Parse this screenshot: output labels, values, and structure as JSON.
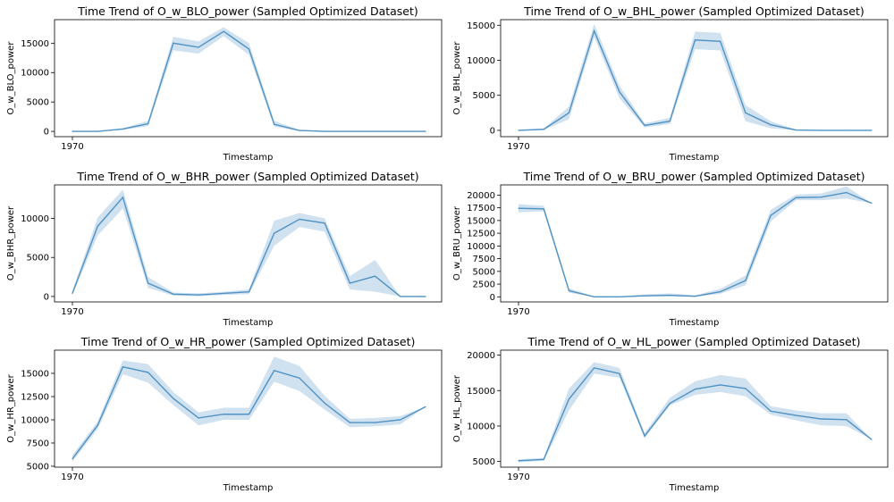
{
  "colors": {
    "line": "#4f92c4",
    "band": "#a9c8e2",
    "axis": "#000000",
    "background": "#ffffff"
  },
  "chart_data": [
    {
      "type": "line",
      "title": "Time Trend of O_w_BLO_power (Sampled Optimized Dataset)",
      "xlabel": "Timestamp",
      "ylabel": "O_w_BLO_power",
      "x_tick_labels": [
        "1970"
      ],
      "yticks": [
        0,
        5000,
        10000,
        15000
      ],
      "ylim": [
        -900,
        19000
      ],
      "x": [
        1,
        2,
        3,
        4,
        5,
        6,
        7,
        8,
        9,
        10,
        11,
        12,
        13,
        14,
        15
      ],
      "series": [
        {
          "values": [
            0,
            0,
            400,
            1300,
            15000,
            14300,
            17000,
            14000,
            1200,
            150,
            0,
            0,
            0,
            0,
            0
          ],
          "lower": [
            0,
            0,
            250,
            900,
            13800,
            13200,
            16200,
            13000,
            800,
            50,
            0,
            0,
            0,
            0,
            0
          ],
          "upper": [
            0,
            0,
            550,
            1800,
            16100,
            15300,
            17700,
            15000,
            1800,
            250,
            0,
            0,
            0,
            0,
            0
          ]
        }
      ]
    },
    {
      "type": "line",
      "title": "Time Trend of O_w_BHL_power (Sampled Optimized Dataset)",
      "xlabel": "Timestamp",
      "ylabel": "O_w_BHL_power",
      "x_tick_labels": [
        "1970"
      ],
      "yticks": [
        0,
        5000,
        10000,
        15000
      ],
      "ylim": [
        -900,
        15800
      ],
      "x": [
        1,
        2,
        3,
        4,
        5,
        6,
        7,
        8,
        9,
        10,
        11,
        12,
        13,
        14,
        15
      ],
      "series": [
        {
          "values": [
            0,
            150,
            2500,
            14200,
            5500,
            700,
            1300,
            12900,
            12700,
            2500,
            800,
            50,
            0,
            0,
            0
          ],
          "lower": [
            0,
            50,
            1600,
            13300,
            4600,
            400,
            900,
            11600,
            11400,
            1300,
            300,
            0,
            0,
            0,
            0
          ],
          "upper": [
            0,
            250,
            3400,
            15200,
            6400,
            1000,
            1800,
            14100,
            13900,
            3600,
            1300,
            100,
            0,
            0,
            0
          ]
        }
      ]
    },
    {
      "type": "line",
      "title": "Time Trend of O_w_BHR_power (Sampled Optimized Dataset)",
      "xlabel": "Timestamp",
      "ylabel": "O_w_BHR_power",
      "x_tick_labels": [
        "1970"
      ],
      "yticks": [
        0,
        5000,
        10000
      ],
      "ylim": [
        -700,
        14300
      ],
      "x": [
        1,
        2,
        3,
        4,
        5,
        6,
        7,
        8,
        9,
        10,
        11,
        12,
        13,
        14,
        15
      ],
      "series": [
        {
          "values": [
            400,
            9000,
            12700,
            1700,
            300,
            200,
            400,
            600,
            8100,
            9900,
            9400,
            1700,
            2600,
            0,
            0
          ],
          "lower": [
            200,
            7800,
            11300,
            1100,
            100,
            50,
            200,
            300,
            6500,
            8900,
            8300,
            900,
            600,
            0,
            0
          ],
          "upper": [
            700,
            10100,
            13700,
            2500,
            500,
            400,
            600,
            900,
            9700,
            10700,
            10000,
            2600,
            4700,
            0,
            0
          ]
        }
      ]
    },
    {
      "type": "line",
      "title": "Time Trend of O_w_BRU_power (Sampled Optimized Dataset)",
      "xlabel": "Timestamp",
      "ylabel": "O_w_BRU_power",
      "x_tick_labels": [
        "1970"
      ],
      "yticks": [
        0,
        2500,
        5000,
        7500,
        10000,
        12500,
        15000,
        17500,
        20000
      ],
      "ylim": [
        -1000,
        22000
      ],
      "x": [
        1,
        2,
        3,
        4,
        5,
        6,
        7,
        8,
        9,
        10,
        11,
        12,
        13,
        14,
        15
      ],
      "series": [
        {
          "values": [
            17400,
            17300,
            1200,
            0,
            0,
            200,
            300,
            100,
            1000,
            3200,
            16000,
            19500,
            19600,
            20500,
            18400
          ],
          "lower": [
            16600,
            16800,
            800,
            0,
            0,
            50,
            100,
            0,
            600,
            2300,
            14800,
            19000,
            19000,
            19300,
            18400
          ],
          "upper": [
            18200,
            17900,
            1700,
            50,
            100,
            500,
            700,
            300,
            1600,
            4200,
            17100,
            20100,
            20300,
            21700,
            18400
          ]
        }
      ]
    },
    {
      "type": "line",
      "title": "Time Trend of O_w_HR_power (Sampled Optimized Dataset)",
      "xlabel": "Timestamp",
      "ylabel": "O_w_HR_power",
      "x_tick_labels": [
        "1970"
      ],
      "yticks": [
        5000,
        7500,
        10000,
        12500,
        15000
      ],
      "ylim": [
        4900,
        17500
      ],
      "x": [
        1,
        2,
        3,
        4,
        5,
        6,
        7,
        8,
        9,
        10,
        11,
        12,
        13,
        14,
        15
      ],
      "series": [
        {
          "values": [
            5800,
            9400,
            15700,
            15100,
            12300,
            10200,
            10600,
            10600,
            15300,
            14500,
            11800,
            9700,
            9700,
            10000,
            11400
          ],
          "lower": [
            5500,
            9000,
            14900,
            14000,
            11600,
            9400,
            10000,
            10000,
            14100,
            13100,
            11100,
            9200,
            9300,
            9500,
            11400
          ],
          "upper": [
            6200,
            9800,
            16400,
            16000,
            13000,
            10800,
            11300,
            11300,
            16800,
            15800,
            12600,
            10100,
            10200,
            10400,
            11400
          ]
        }
      ]
    },
    {
      "type": "line",
      "title": "Time Trend of O_w_HL_power (Sampled Optimized Dataset)",
      "xlabel": "Timestamp",
      "ylabel": "O_w_HL_power",
      "x_tick_labels": [
        "1970"
      ],
      "yticks": [
        5000,
        10000,
        15000,
        20000
      ],
      "ylim": [
        4200,
        20700
      ],
      "x": [
        1,
        2,
        3,
        4,
        5,
        6,
        7,
        8,
        9,
        10,
        11,
        12,
        13,
        14,
        15
      ],
      "series": [
        {
          "values": [
            5100,
            5300,
            13800,
            18200,
            17400,
            8600,
            13200,
            15200,
            15800,
            15300,
            12100,
            11500,
            11000,
            10900,
            8100
          ],
          "lower": [
            4900,
            5100,
            12200,
            17400,
            16800,
            8300,
            12900,
            14400,
            14800,
            14200,
            11600,
            10800,
            10100,
            10000,
            8100
          ],
          "upper": [
            5300,
            5500,
            15300,
            19000,
            18200,
            9000,
            14000,
            16300,
            17200,
            16700,
            12800,
            12200,
            11800,
            11800,
            8100
          ]
        }
      ]
    }
  ]
}
